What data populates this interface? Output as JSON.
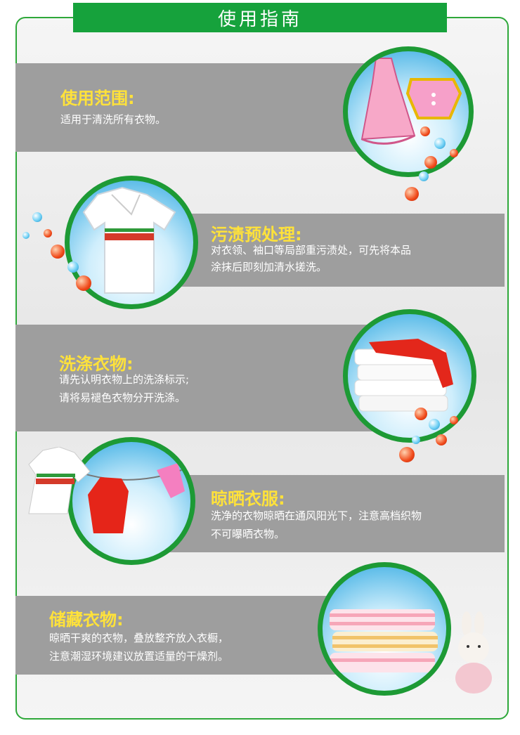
{
  "title": "使用指南",
  "colors": {
    "accent_green": "#16a23c",
    "band_gray": "#9e9e9e",
    "heading_yellow": "#ffe23a"
  },
  "sections": [
    {
      "heading": "使用范围:",
      "lines": [
        "适用于清洗所有衣物。"
      ],
      "image": "dress-icon"
    },
    {
      "heading": "污渍预处理:",
      "lines": [
        "对衣领、袖口等局部重污渍处，可先将本品",
        "涂抹后即刻加清水搓洗。"
      ],
      "image": "polo-shirt-icon"
    },
    {
      "heading": "洗涤衣物:",
      "lines": [
        "请先认明衣物上的洗涤标示;",
        "请将易褪色衣物分开洗涤。"
      ],
      "image": "folded-clothes-icon"
    },
    {
      "heading": "晾晒衣服:",
      "lines": [
        "洗净的衣物晾晒在通风阳光下，注意高档织物",
        "不可曝晒衣物。"
      ],
      "image": "clothesline-icon"
    },
    {
      "heading": "储藏衣物:",
      "lines": [
        "晾晒干爽的衣物，叠放整齐放入衣橱，",
        "注意潮湿环境建议放置适量的干燥剂。"
      ],
      "image": "stacked-clothes-icon"
    }
  ]
}
